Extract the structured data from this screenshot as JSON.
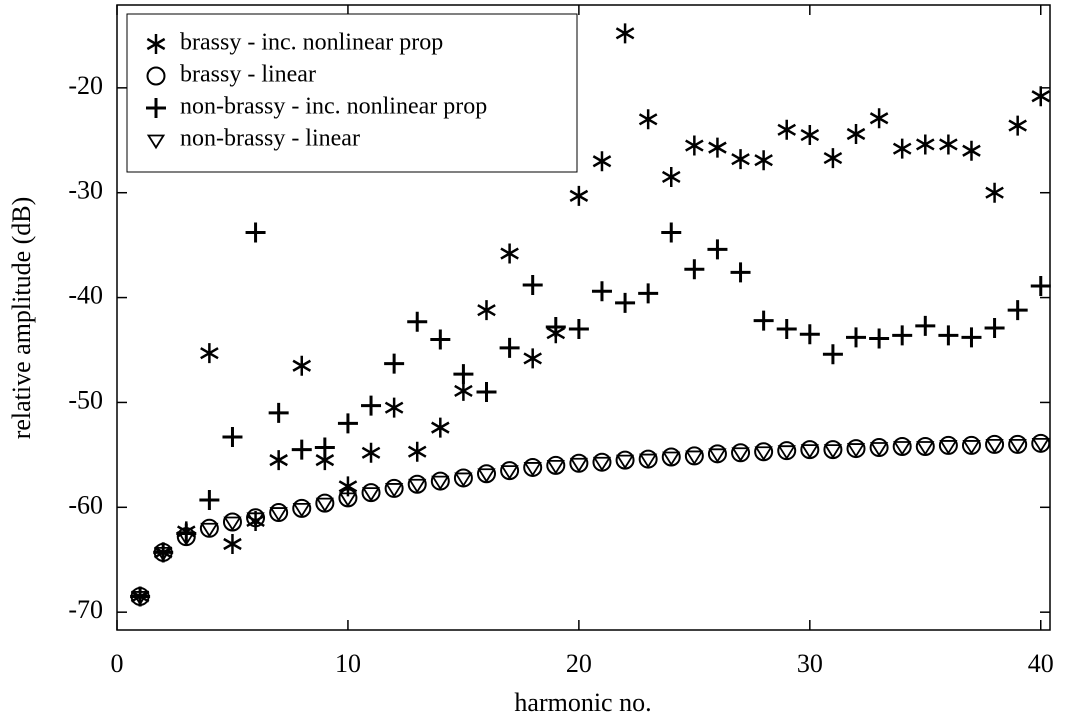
{
  "chart_data": {
    "type": "scatter",
    "xlabel": "harmonic no.",
    "ylabel": "relative amplitude (dB)",
    "x": [
      1,
      2,
      3,
      4,
      5,
      6,
      7,
      8,
      9,
      10,
      11,
      12,
      13,
      14,
      15,
      16,
      17,
      18,
      19,
      20,
      21,
      22,
      23,
      24,
      25,
      26,
      27,
      28,
      29,
      30,
      31,
      32,
      33,
      34,
      35,
      36,
      37,
      38,
      39,
      40
    ],
    "xlim": [
      0,
      40.4
    ],
    "xticks": [
      0,
      10,
      20,
      30,
      40
    ],
    "ylim": [
      -71.7,
      -12.1
    ],
    "yticks": [
      -70,
      -60,
      -50,
      -40,
      -30,
      -20
    ],
    "legend": "upper left",
    "series": [
      {
        "name": "brassy - inc. nonlinear prop",
        "marker": "asterisk",
        "color": "#000000",
        "values": [
          -68.5,
          -64.3,
          -62.3,
          -45.3,
          -63.5,
          -61.3,
          -55.5,
          -46.5,
          -55.5,
          -58,
          -54.8,
          -50.5,
          -54.7,
          -52.4,
          -48.9,
          -41.2,
          -35.8,
          -45.8,
          -43.4,
          -30.3,
          -27,
          -14.8,
          -23,
          -28.5,
          -25.5,
          -25.7,
          -26.8,
          -26.9,
          -24,
          -24.5,
          -26.7,
          -24.4,
          -22.9,
          -25.8,
          -25.4,
          -25.4,
          -26,
          -30,
          -23.6,
          -20.8
        ]
      },
      {
        "name": "brassy - linear",
        "marker": "circle",
        "color": "#000000",
        "values": [
          -68.5,
          -64.3,
          -62.8,
          -62,
          -61.4,
          -61,
          -60.5,
          -60.1,
          -59.6,
          -59.1,
          -58.6,
          -58.2,
          -57.8,
          -57.5,
          -57.2,
          -56.8,
          -56.5,
          -56.2,
          -56,
          -55.8,
          -55.7,
          -55.5,
          -55.4,
          -55.2,
          -55.1,
          -54.9,
          -54.8,
          -54.7,
          -54.6,
          -54.5,
          -54.5,
          -54.4,
          -54.3,
          -54.2,
          -54.2,
          -54.1,
          -54.1,
          -54,
          -54,
          -53.9
        ]
      },
      {
        "name": "non-brassy - inc. nonlinear prop",
        "marker": "plus",
        "color": "#000000",
        "values": [
          -68.5,
          -64.3,
          -62.5,
          -59.3,
          -53.3,
          -33.8,
          -51,
          -54.5,
          -54.3,
          -52,
          -50.3,
          -46.3,
          -42.3,
          -44,
          -47.3,
          -49,
          -44.8,
          -38.8,
          -42.8,
          -43,
          -39.4,
          -40.5,
          -39.6,
          -33.8,
          -37.3,
          -35.4,
          -37.6,
          -42.2,
          -43,
          -43.5,
          -45.4,
          -43.8,
          -43.9,
          -43.6,
          -42.7,
          -43.6,
          -43.8,
          -42.9,
          -41.2,
          -38.9
        ]
      },
      {
        "name": "non-brassy - linear",
        "marker": "triangle-down",
        "color": "#000000",
        "values": [
          -68.5,
          -64.3,
          -62.8,
          -62,
          -61.4,
          -61,
          -60.5,
          -60.1,
          -59.6,
          -59.1,
          -58.6,
          -58.2,
          -57.8,
          -57.5,
          -57.2,
          -56.8,
          -56.5,
          -56.2,
          -56,
          -55.8,
          -55.7,
          -55.5,
          -55.4,
          -55.2,
          -55.1,
          -54.9,
          -54.8,
          -54.7,
          -54.6,
          -54.5,
          -54.5,
          -54.4,
          -54.3,
          -54.2,
          -54.2,
          -54.1,
          -54.1,
          -54,
          -54,
          -53.9
        ]
      }
    ]
  }
}
